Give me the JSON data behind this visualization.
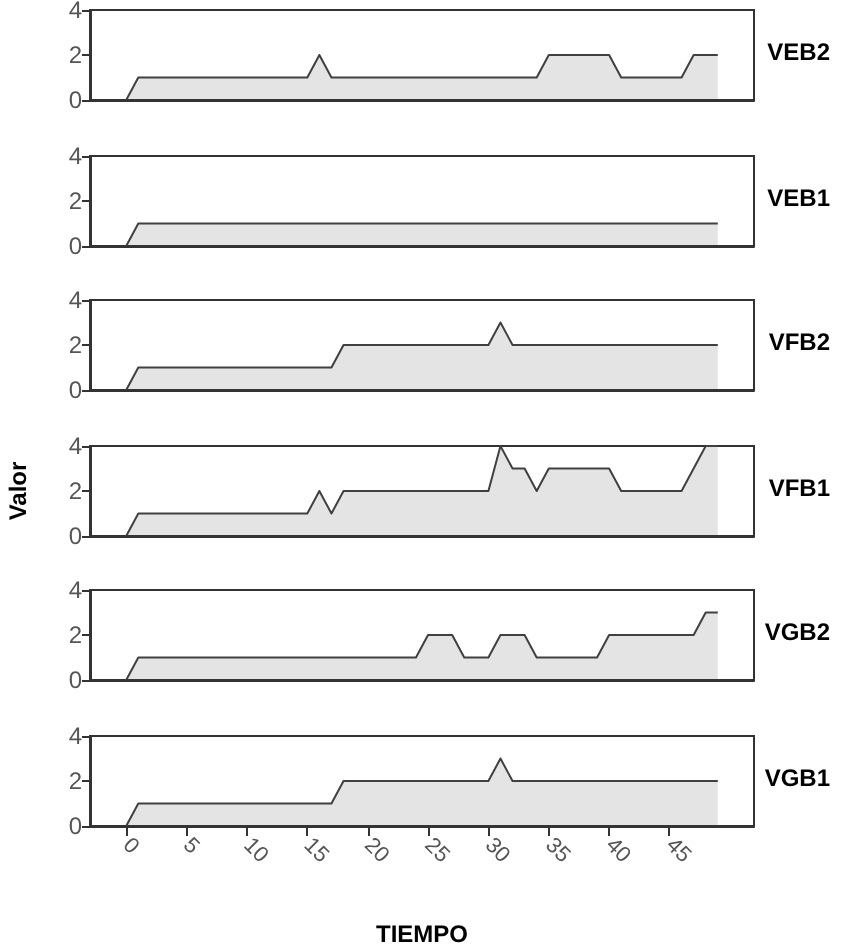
{
  "chart_data": [
    {
      "type": "area",
      "series": [
        {
          "name": "VEB2",
          "color": "#404040",
          "x": [
            0,
            1,
            15,
            16,
            17,
            34,
            35,
            40,
            41,
            46,
            47,
            49
          ],
          "values": [
            0,
            1,
            1,
            2,
            1,
            1,
            2,
            2,
            1,
            1,
            2,
            2
          ]
        }
      ],
      "xlim": [
        -3,
        52
      ],
      "xticks": [
        0,
        5,
        10,
        15,
        20,
        25,
        30,
        35,
        40,
        45
      ],
      "ylim": [
        0,
        4
      ],
      "yticks": [
        0,
        2,
        4
      ],
      "tick_labels": "y",
      "marker": "none"
    },
    {
      "type": "area",
      "series": [
        {
          "name": "VEB1",
          "color": "#404040",
          "x": [
            0,
            1,
            49
          ],
          "values": [
            0,
            1,
            1
          ]
        }
      ],
      "xlim": [
        -3,
        52
      ],
      "xticks": [
        0,
        5,
        10,
        15,
        20,
        25,
        30,
        35,
        40,
        45
      ],
      "ylim": [
        0,
        4
      ],
      "yticks": [
        0,
        2,
        4
      ],
      "tick_labels": "y",
      "marker": "none"
    },
    {
      "type": "area",
      "series": [
        {
          "name": "VFB2",
          "color": "#404040",
          "x": [
            0,
            1,
            17,
            18,
            30,
            31,
            32,
            49
          ],
          "values": [
            0,
            1,
            1,
            2,
            2,
            3,
            2,
            2
          ]
        }
      ],
      "xlim": [
        -3,
        52
      ],
      "xticks": [
        0,
        5,
        10,
        15,
        20,
        25,
        30,
        35,
        40,
        45
      ],
      "ylim": [
        0,
        4
      ],
      "yticks": [
        0,
        2,
        4
      ],
      "tick_labels": "y",
      "marker": "none"
    },
    {
      "type": "area",
      "ylabel": "Valor",
      "series": [
        {
          "name": "VFB1",
          "color": "#404040",
          "x": [
            0,
            1,
            15,
            16,
            17,
            18,
            30,
            31,
            32,
            33,
            34,
            35,
            40,
            41,
            46,
            48,
            49
          ],
          "values": [
            0,
            1,
            1,
            2,
            1,
            2,
            2,
            4,
            3,
            3,
            2,
            3,
            3,
            2,
            2,
            4,
            4
          ]
        }
      ],
      "xlim": [
        -3,
        52
      ],
      "xticks": [
        0,
        5,
        10,
        15,
        20,
        25,
        30,
        35,
        40,
        45
      ],
      "ylim": [
        0,
        4
      ],
      "yticks": [
        0,
        2,
        4
      ],
      "tick_labels": "y",
      "marker": "none"
    },
    {
      "type": "area",
      "series": [
        {
          "name": "VGB2",
          "color": "#404040",
          "x": [
            0,
            1,
            24,
            25,
            27,
            28,
            30,
            31,
            33,
            34,
            39,
            40,
            47,
            48,
            49
          ],
          "values": [
            0,
            1,
            1,
            2,
            2,
            1,
            1,
            2,
            2,
            1,
            1,
            2,
            2,
            3,
            3
          ]
        }
      ],
      "xlim": [
        -3,
        52
      ],
      "xticks": [
        0,
        5,
        10,
        15,
        20,
        25,
        30,
        35,
        40,
        45
      ],
      "ylim": [
        0,
        4
      ],
      "yticks": [
        0,
        2,
        4
      ],
      "tick_labels": "y",
      "marker": "none"
    },
    {
      "type": "area",
      "xlabel": "TIEMPO",
      "series": [
        {
          "name": "VGB1",
          "color": "#404040",
          "x": [
            0,
            1,
            17,
            18,
            30,
            31,
            32,
            49
          ],
          "values": [
            0,
            1,
            1,
            2,
            2,
            3,
            2,
            2
          ]
        }
      ],
      "xlim": [
        -3,
        52
      ],
      "xticks": [
        0,
        5,
        10,
        15,
        20,
        25,
        30,
        35,
        40,
        45
      ],
      "ylim": [
        0,
        4
      ],
      "yticks": [
        0,
        2,
        4
      ],
      "marker": "none"
    }
  ]
}
